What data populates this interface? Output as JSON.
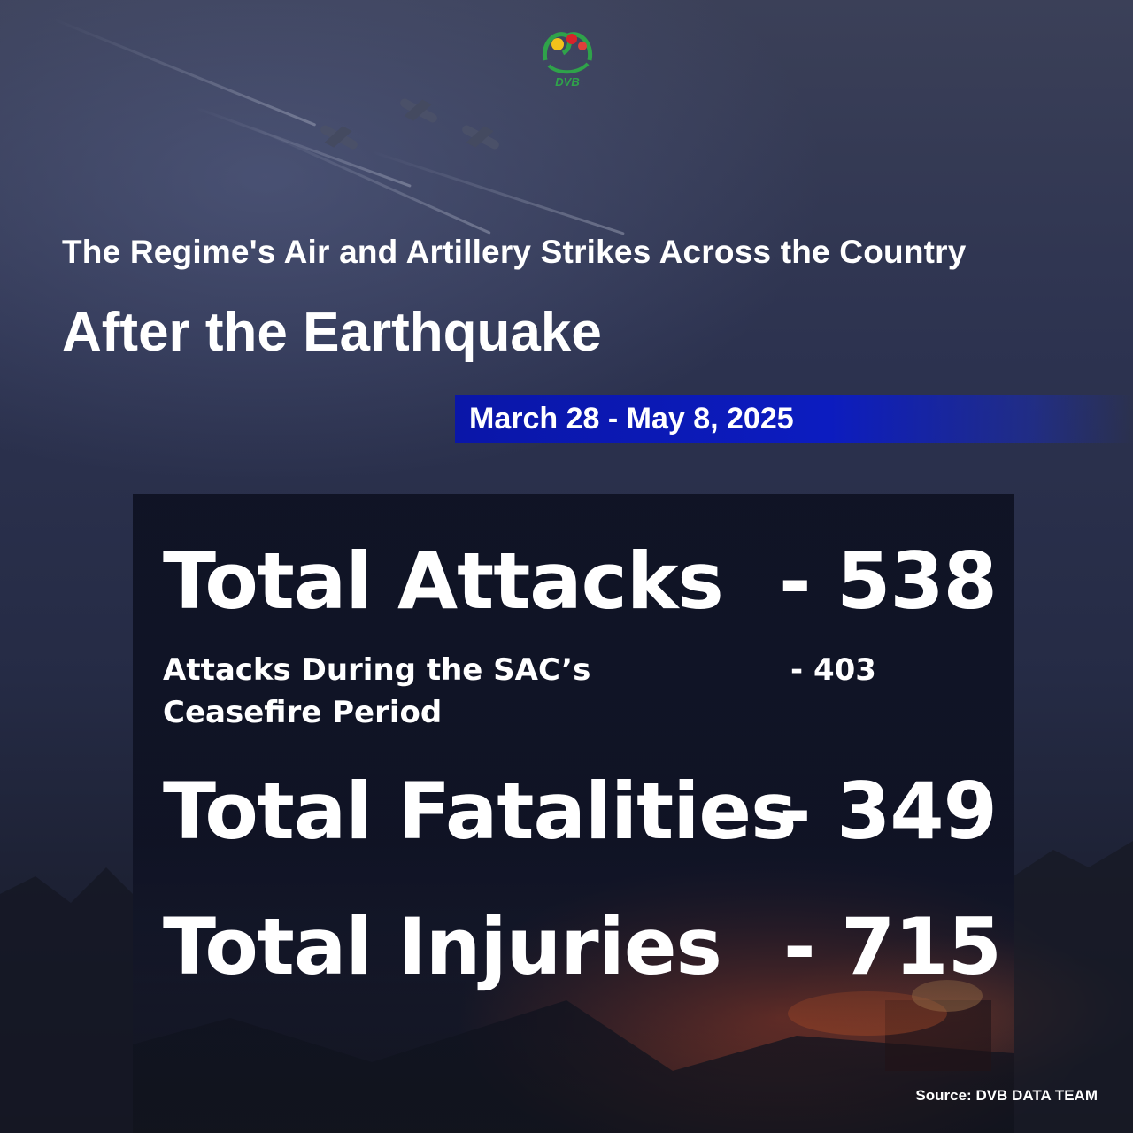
{
  "logo": {
    "text": "DVB"
  },
  "header": {
    "subtitle": "The Regime's Air and Artillery Strikes Across the Country",
    "title": "After the Earthquake"
  },
  "date_range": "March 28 - May 8, 2025",
  "stats": {
    "total_attacks": {
      "label": "Total Attacks",
      "value": "- 538"
    },
    "ceasefire_attacks": {
      "label_line1": "Attacks During the SAC’s",
      "label_line2": "Ceasefire Period",
      "value": "- 403"
    },
    "total_fatalities": {
      "label": "Total Fatalities",
      "value": "- 349"
    },
    "total_injuries": {
      "label": "Total Injuries",
      "value": "- 715"
    }
  },
  "source": "Source: DVB DATA TEAM",
  "colors": {
    "date_bar": "#0c1cc0",
    "panel": "#0e1122",
    "text": "#ffffff"
  }
}
